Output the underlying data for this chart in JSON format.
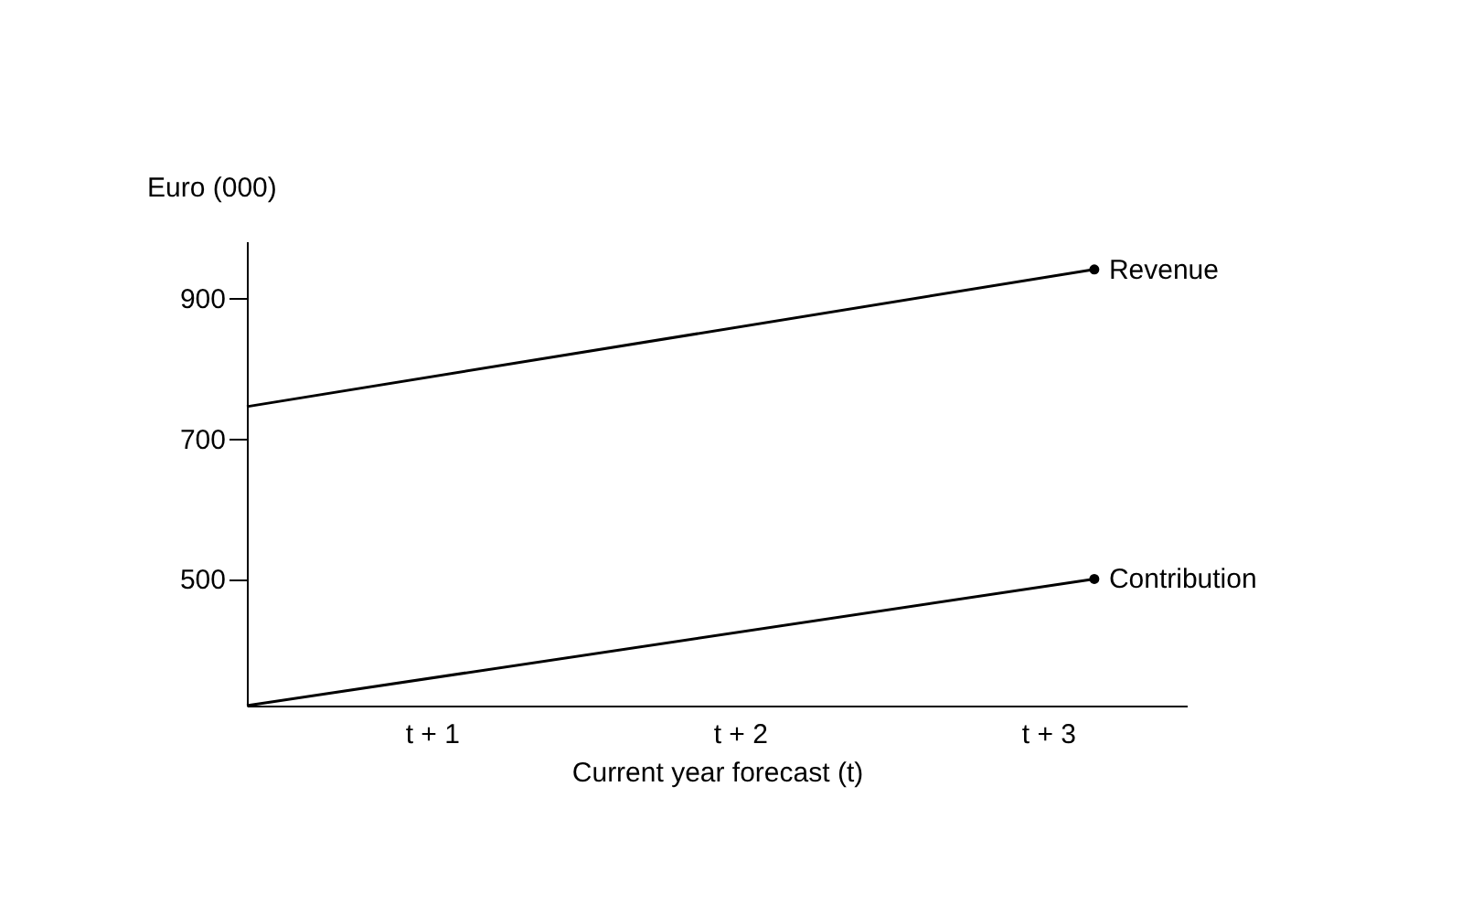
{
  "chart_data": {
    "type": "line",
    "xlabel": "Current year forecast (t)",
    "ylabel": "Euro (000)",
    "x": [
      0.4,
      3.15
    ],
    "series": [
      {
        "name": "Revenue",
        "color": "#000000",
        "values": [
          745,
          940
        ]
      },
      {
        "name": "Contribution",
        "color": "#000000",
        "values": [
          320,
          500
        ]
      }
    ],
    "xlim": [
      0.4,
      3.45
    ],
    "ylim": [
      320,
      980
    ],
    "xticks": [
      {
        "value": 1,
        "label": "t + 1"
      },
      {
        "value": 2,
        "label": "t + 2"
      },
      {
        "value": 3,
        "label": "t + 3"
      }
    ],
    "yticks": [
      500,
      700,
      900
    ],
    "marker": "circle",
    "line_style": "solid",
    "grid": false
  }
}
